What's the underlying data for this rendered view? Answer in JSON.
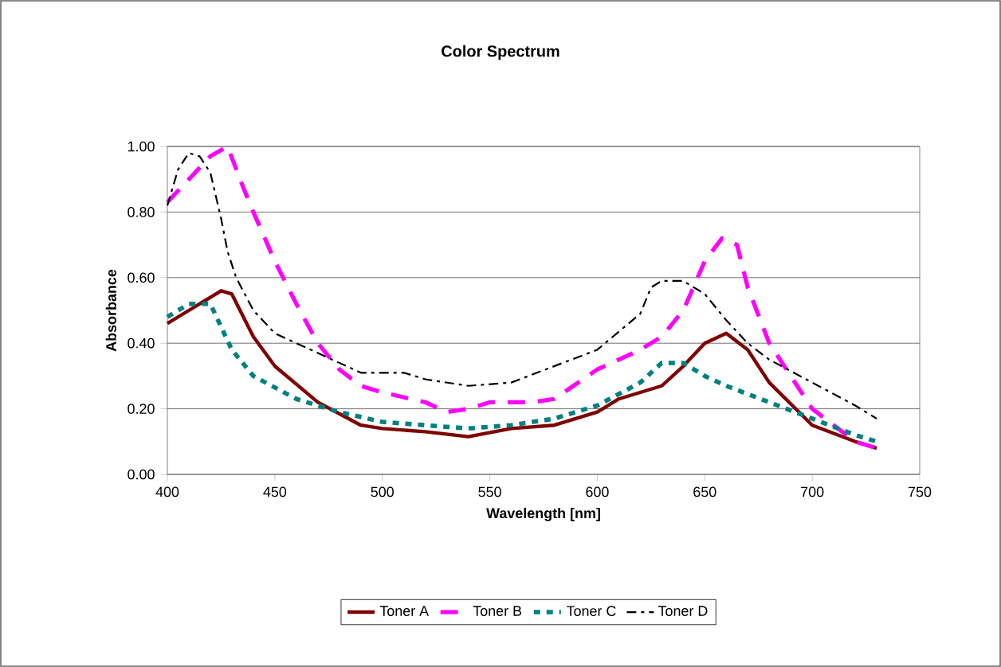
{
  "chart_data": {
    "type": "line",
    "title": "Color Spectrum",
    "xlabel": "Wavelength [nm]",
    "ylabel": "Absorbance",
    "xlim": [
      400,
      750
    ],
    "xticks": [
      400,
      450,
      500,
      550,
      600,
      650,
      700,
      750
    ],
    "ylim": [
      0,
      1
    ],
    "yticks": [
      {
        "value": 0,
        "label": "0.00"
      },
      {
        "value": 0.2,
        "label": "0.20"
      },
      {
        "value": 0.4,
        "label": "0.40"
      },
      {
        "value": 0.6,
        "label": "0.60"
      },
      {
        "value": 0.8,
        "label": "0.80"
      },
      {
        "value": 1,
        "label": "1.00"
      }
    ],
    "grid": "y",
    "legend": "bottom",
    "marker": "none",
    "series": [
      {
        "name": "Toner A",
        "color": "#800000",
        "line_style": "solid",
        "x": [
          400,
          410,
          420,
          425,
          430,
          440,
          450,
          470,
          490,
          500,
          520,
          540,
          560,
          580,
          600,
          610,
          630,
          640,
          650,
          660,
          670,
          680,
          700,
          720,
          730
        ],
        "values": [
          0.46,
          0.5,
          0.54,
          0.56,
          0.55,
          0.42,
          0.33,
          0.22,
          0.15,
          0.14,
          0.13,
          0.115,
          0.14,
          0.15,
          0.19,
          0.23,
          0.27,
          0.33,
          0.4,
          0.43,
          0.38,
          0.28,
          0.15,
          0.1,
          0.08
        ]
      },
      {
        "name": "Toner B",
        "color": "#ff00ff",
        "line_style": "dashed",
        "x": [
          400,
          410,
          420,
          428,
          435,
          440,
          450,
          460,
          470,
          480,
          490,
          500,
          520,
          530,
          540,
          550,
          570,
          580,
          600,
          620,
          630,
          640,
          650,
          658,
          665,
          670,
          680,
          690,
          700,
          720,
          730
        ],
        "values": [
          0.83,
          0.9,
          0.97,
          1.0,
          0.88,
          0.8,
          0.65,
          0.52,
          0.4,
          0.32,
          0.27,
          0.25,
          0.22,
          0.19,
          0.2,
          0.22,
          0.22,
          0.23,
          0.32,
          0.38,
          0.42,
          0.5,
          0.65,
          0.72,
          0.7,
          0.57,
          0.4,
          0.3,
          0.2,
          0.1,
          0.08
        ]
      },
      {
        "name": "Toner C",
        "color": "#008080",
        "line_style": "dotted",
        "x": [
          400,
          410,
          420,
          425,
          430,
          440,
          460,
          480,
          500,
          520,
          540,
          560,
          580,
          600,
          620,
          630,
          640,
          650,
          660,
          680,
          700,
          720,
          730
        ],
        "values": [
          0.48,
          0.52,
          0.52,
          0.45,
          0.38,
          0.3,
          0.23,
          0.19,
          0.16,
          0.15,
          0.14,
          0.15,
          0.17,
          0.21,
          0.28,
          0.34,
          0.34,
          0.3,
          0.27,
          0.22,
          0.17,
          0.12,
          0.1
        ]
      },
      {
        "name": "Toner D",
        "color": "#000000",
        "line_style": "dashdot",
        "x": [
          400,
          405,
          410,
          415,
          420,
          425,
          428,
          432,
          440,
          450,
          470,
          490,
          500,
          510,
          520,
          540,
          560,
          580,
          600,
          620,
          625,
          630,
          640,
          650,
          660,
          670,
          680,
          700,
          720,
          730
        ],
        "values": [
          0.82,
          0.93,
          0.98,
          0.97,
          0.92,
          0.78,
          0.68,
          0.6,
          0.5,
          0.43,
          0.37,
          0.31,
          0.31,
          0.31,
          0.29,
          0.27,
          0.28,
          0.33,
          0.38,
          0.49,
          0.57,
          0.59,
          0.59,
          0.55,
          0.47,
          0.4,
          0.35,
          0.28,
          0.21,
          0.17
        ]
      }
    ]
  }
}
